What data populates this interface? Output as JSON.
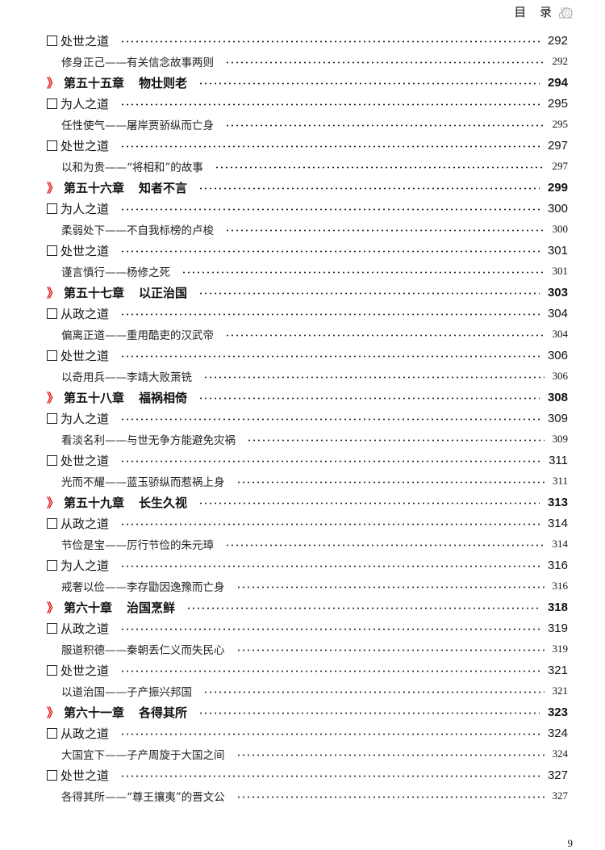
{
  "header": {
    "title": "目 录",
    "icon": "snail-icon"
  },
  "accent_color": "#e0191b",
  "entries": [
    {
      "type": "section",
      "label": "处世之道",
      "page": "292"
    },
    {
      "type": "story",
      "label": "修身正己——有关信念故事两则",
      "page": "292"
    },
    {
      "type": "chapter",
      "chapter": "第五十五章",
      "title": "物壮则老",
      "page": "294"
    },
    {
      "type": "section",
      "label": "为人之道",
      "page": "295"
    },
    {
      "type": "story",
      "label": "任性使气——屠岸贾骄纵而亡身",
      "page": "295"
    },
    {
      "type": "section",
      "label": "处世之道",
      "page": "297"
    },
    {
      "type": "story",
      "label": "以和为贵——“将相和”的故事",
      "page": "297"
    },
    {
      "type": "chapter",
      "chapter": "第五十六章",
      "title": "知者不言",
      "page": "299"
    },
    {
      "type": "section",
      "label": "为人之道",
      "page": "300"
    },
    {
      "type": "story",
      "label": "柔弱处下——不自我标榜的卢梭",
      "page": "300"
    },
    {
      "type": "section",
      "label": "处世之道",
      "page": "301"
    },
    {
      "type": "story",
      "label": "谨言慎行——杨修之死",
      "page": "301"
    },
    {
      "type": "chapter",
      "chapter": "第五十七章",
      "title": "以正治国",
      "page": "303"
    },
    {
      "type": "section",
      "label": "从政之道",
      "page": "304"
    },
    {
      "type": "story",
      "label": "偏离正道——重用酷吏的汉武帝",
      "page": "304"
    },
    {
      "type": "section",
      "label": "处世之道",
      "page": "306"
    },
    {
      "type": "story",
      "label": "以奇用兵——李靖大败萧铣",
      "page": "306"
    },
    {
      "type": "chapter",
      "chapter": "第五十八章",
      "title": "福祸相倚",
      "page": "308"
    },
    {
      "type": "section",
      "label": "为人之道",
      "page": "309"
    },
    {
      "type": "story",
      "label": "看淡名利——与世无争方能避免灾祸",
      "page": "309"
    },
    {
      "type": "section",
      "label": "处世之道",
      "page": "311"
    },
    {
      "type": "story",
      "label": "光而不耀——蓝玉骄纵而惹祸上身",
      "page": "311"
    },
    {
      "type": "chapter",
      "chapter": "第五十九章",
      "title": "长生久视",
      "page": "313"
    },
    {
      "type": "section",
      "label": "从政之道",
      "page": "314"
    },
    {
      "type": "story",
      "label": "节俭是宝——厉行节俭的朱元璋",
      "page": "314"
    },
    {
      "type": "section",
      "label": "为人之道",
      "page": "316"
    },
    {
      "type": "story",
      "label": "戒奢以俭——李存勖因逸豫而亡身",
      "page": "316"
    },
    {
      "type": "chapter",
      "chapter": "第六十章",
      "title": "治国烹鲜",
      "page": "318"
    },
    {
      "type": "section",
      "label": "从政之道",
      "page": "319"
    },
    {
      "type": "story",
      "label": "服道积德——秦朝丢仁义而失民心",
      "page": "319"
    },
    {
      "type": "section",
      "label": "处世之道",
      "page": "321"
    },
    {
      "type": "story",
      "label": "以道治国——子产振兴邦国",
      "page": "321"
    },
    {
      "type": "chapter",
      "chapter": "第六十一章",
      "title": "各得其所",
      "page": "323"
    },
    {
      "type": "section",
      "label": "从政之道",
      "page": "324"
    },
    {
      "type": "story",
      "label": "大国宜下——子产周旋于大国之间",
      "page": "324"
    },
    {
      "type": "section",
      "label": "处世之道",
      "page": "327"
    },
    {
      "type": "story",
      "label": "各得其所——“尊王攘夷”的晋文公",
      "page": "327"
    }
  ],
  "footer": {
    "page_number": "9"
  }
}
